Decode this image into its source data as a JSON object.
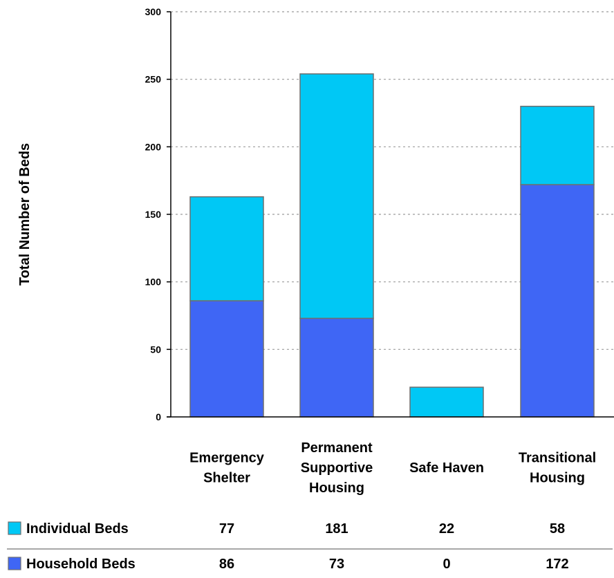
{
  "chart_data": {
    "type": "bar",
    "stacked": true,
    "title": "",
    "xlabel": "",
    "ylabel": "Total Number of Beds",
    "ylim": [
      0,
      300
    ],
    "yticks": [
      "0",
      "50",
      "100",
      "150",
      "200",
      "250",
      "300"
    ],
    "grid": true,
    "categories": [
      [
        "Emergency",
        "Shelter"
      ],
      [
        "Permanent",
        "Supportive",
        "Housing"
      ],
      [
        "Safe Haven"
      ],
      [
        "Transitional",
        "Housing"
      ]
    ],
    "series": [
      {
        "name": "Household Beds",
        "color": "#3f66f5",
        "values": [
          86,
          73,
          0,
          172
        ]
      },
      {
        "name": "Individual Beds",
        "color": "#00c8f5",
        "values": [
          77,
          181,
          22,
          58
        ]
      }
    ],
    "table_rows": [
      {
        "name": "Individual Beds",
        "color": "#00c8f5",
        "values": [
          "77",
          "181",
          "22",
          "58"
        ]
      },
      {
        "name": "Household Beds",
        "color": "#3f66f5",
        "values": [
          "86",
          "73",
          "0",
          "172"
        ]
      }
    ]
  }
}
